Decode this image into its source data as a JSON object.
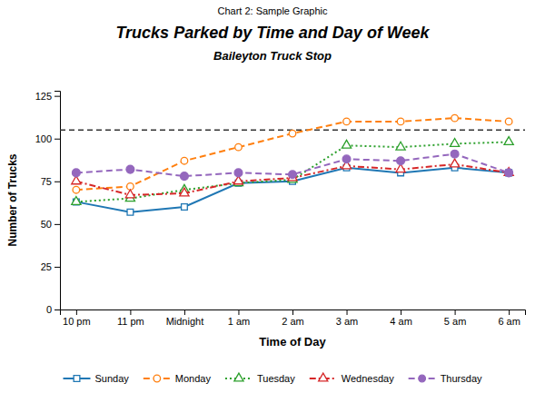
{
  "chart_data": {
    "type": "line",
    "header": "Chart 2: Sample Graphic",
    "title": "Trucks Parked by Time and Day of Week",
    "subtitle": "Baileyton Truck Stop",
    "x_label": "Time of Day",
    "y_label": "Number of Trucks",
    "categories": [
      "10 pm",
      "11 pm",
      "Midnight",
      "1 am",
      "2 am",
      "3 am",
      "4 am",
      "5 am",
      "6 am"
    ],
    "series": [
      {
        "name": "Sunday",
        "values": [
          63,
          57,
          60,
          74,
          75,
          83,
          80,
          83,
          80
        ],
        "marker": "square-open",
        "line_style": "solid"
      },
      {
        "name": "Monday",
        "values": [
          70,
          72,
          87,
          95,
          103,
          110,
          110,
          112,
          110
        ],
        "marker": "circle-open",
        "line_style": "dashed"
      },
      {
        "name": "Tuesday",
        "values": [
          63,
          65,
          70,
          74,
          76,
          96,
          95,
          97,
          98
        ],
        "marker": "triangle-open",
        "line_style": "dotted"
      },
      {
        "name": "Wednesday",
        "values": [
          75,
          67,
          68,
          75,
          77,
          84,
          82,
          85,
          80
        ],
        "marker": "triangle-open",
        "line_style": "dashdot"
      },
      {
        "name": "Thursday",
        "values": [
          80,
          82,
          78,
          80,
          79,
          88,
          87,
          91,
          80
        ],
        "marker": "circle",
        "line_style": "dashed"
      }
    ],
    "reference_line": 105,
    "ylim": [
      0,
      128
    ],
    "yticks": [
      0,
      25,
      50,
      75,
      100,
      125
    ],
    "grid": false,
    "legend": "bottom"
  }
}
